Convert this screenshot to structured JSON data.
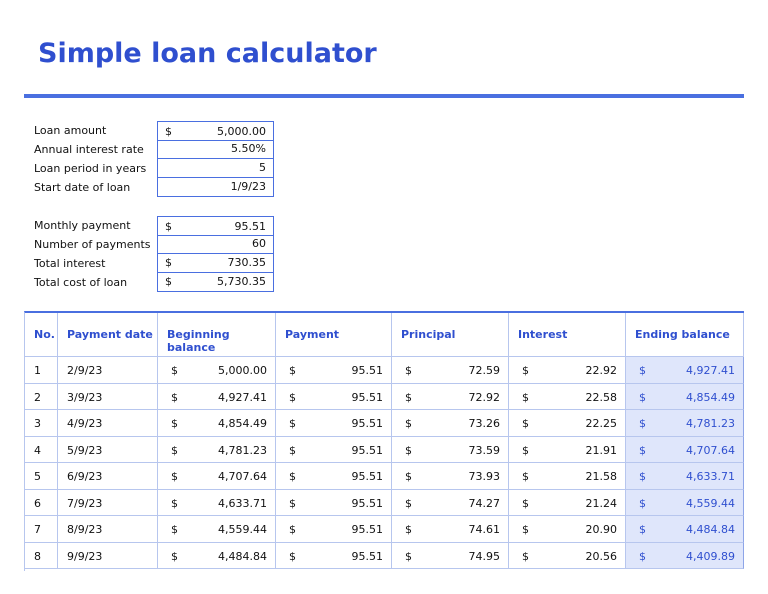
{
  "title": "Simple loan calculator",
  "inputs": [
    [
      {
        "label": "Loan amount",
        "symbol": "$",
        "value": "5,000.00"
      },
      {
        "label": "Annual interest rate",
        "value": "5.50%"
      },
      {
        "label": "Loan period in years",
        "value": "5"
      },
      {
        "label": "Start date of loan",
        "value": "1/9/23"
      }
    ],
    [
      {
        "label": "Monthly payment",
        "symbol": "$",
        "value": "95.51"
      },
      {
        "label": "Number of payments",
        "value": "60"
      },
      {
        "label": "Total interest",
        "symbol": "$",
        "value": "730.35"
      },
      {
        "label": "Total cost of loan",
        "symbol": "$",
        "value": "5,730.35"
      }
    ]
  ],
  "table": {
    "currency": "$",
    "headers": [
      "No.",
      "Payment date",
      "Beginning balance",
      "Payment",
      "Principal",
      "Interest",
      "Ending balance"
    ],
    "rows": [
      [
        "1",
        "2/9/23",
        "5,000.00",
        "95.51",
        "72.59",
        "22.92",
        "4,927.41"
      ],
      [
        "2",
        "3/9/23",
        "4,927.41",
        "95.51",
        "72.92",
        "22.58",
        "4,854.49"
      ],
      [
        "3",
        "4/9/23",
        "4,854.49",
        "95.51",
        "73.26",
        "22.25",
        "4,781.23"
      ],
      [
        "4",
        "5/9/23",
        "4,781.23",
        "95.51",
        "73.59",
        "21.91",
        "4,707.64"
      ],
      [
        "5",
        "6/9/23",
        "4,707.64",
        "95.51",
        "73.93",
        "21.58",
        "4,633.71"
      ],
      [
        "6",
        "7/9/23",
        "4,633.71",
        "95.51",
        "74.27",
        "21.24",
        "4,559.44"
      ],
      [
        "7",
        "8/9/23",
        "4,559.44",
        "95.51",
        "74.61",
        "20.90",
        "4,484.84"
      ],
      [
        "8",
        "9/9/23",
        "4,484.84",
        "95.51",
        "74.95",
        "20.56",
        "4,409.89"
      ]
    ]
  }
}
